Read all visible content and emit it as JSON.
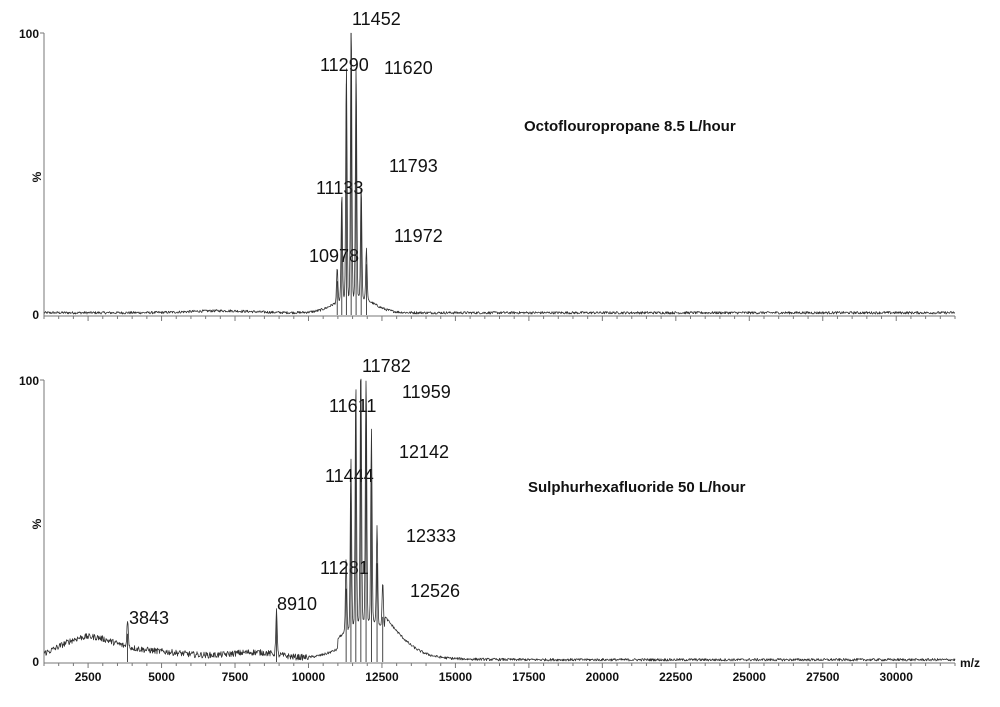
{
  "chart_data": [
    {
      "type": "line",
      "title": "Octoflouropropane 8.5 L/hour",
      "xlabel": "",
      "ylabel": "%",
      "xlim": [
        1000,
        32000
      ],
      "ylim": [
        0,
        100
      ],
      "yticks": [
        "0",
        "100"
      ],
      "grid": false,
      "legend": "none",
      "labeled_peaks": [
        {
          "mz": 10978,
          "intensity": 12,
          "label": "10978"
        },
        {
          "mz": 11133,
          "intensity": 38,
          "label": "11133"
        },
        {
          "mz": 11290,
          "intensity": 82,
          "label": "11290"
        },
        {
          "mz": 11452,
          "intensity": 100,
          "label": "11452"
        },
        {
          "mz": 11620,
          "intensity": 82,
          "label": "11620"
        },
        {
          "mz": 11793,
          "intensity": 40,
          "label": "11793"
        },
        {
          "mz": 11972,
          "intensity": 18,
          "label": "11972"
        }
      ]
    },
    {
      "type": "line",
      "title": "Sulphurhexafluoride 50 L/hour",
      "xlabel": "m/z",
      "ylabel": "%",
      "xlim": [
        1000,
        32000
      ],
      "ylim": [
        0,
        100
      ],
      "yticks": [
        "0",
        "100"
      ],
      "xticks": [
        2500,
        5000,
        7500,
        10000,
        12500,
        15000,
        17500,
        20000,
        22500,
        25000,
        27500,
        30000
      ],
      "grid": false,
      "legend": "none",
      "labeled_peaks": [
        {
          "mz": 3843,
          "intensity": 10,
          "label": "3843"
        },
        {
          "mz": 8910,
          "intensity": 16,
          "label": "8910"
        },
        {
          "mz": 11281,
          "intensity": 26,
          "label": "11281"
        },
        {
          "mz": 11444,
          "intensity": 60,
          "label": "11444"
        },
        {
          "mz": 11611,
          "intensity": 86,
          "label": "11611"
        },
        {
          "mz": 11782,
          "intensity": 100,
          "label": "11782"
        },
        {
          "mz": 11959,
          "intensity": 94,
          "label": "11959"
        },
        {
          "mz": 12142,
          "intensity": 68,
          "label": "12142"
        },
        {
          "mz": 12333,
          "intensity": 35,
          "label": "12333"
        },
        {
          "mz": 12526,
          "intensity": 16,
          "label": "12526"
        }
      ]
    }
  ]
}
